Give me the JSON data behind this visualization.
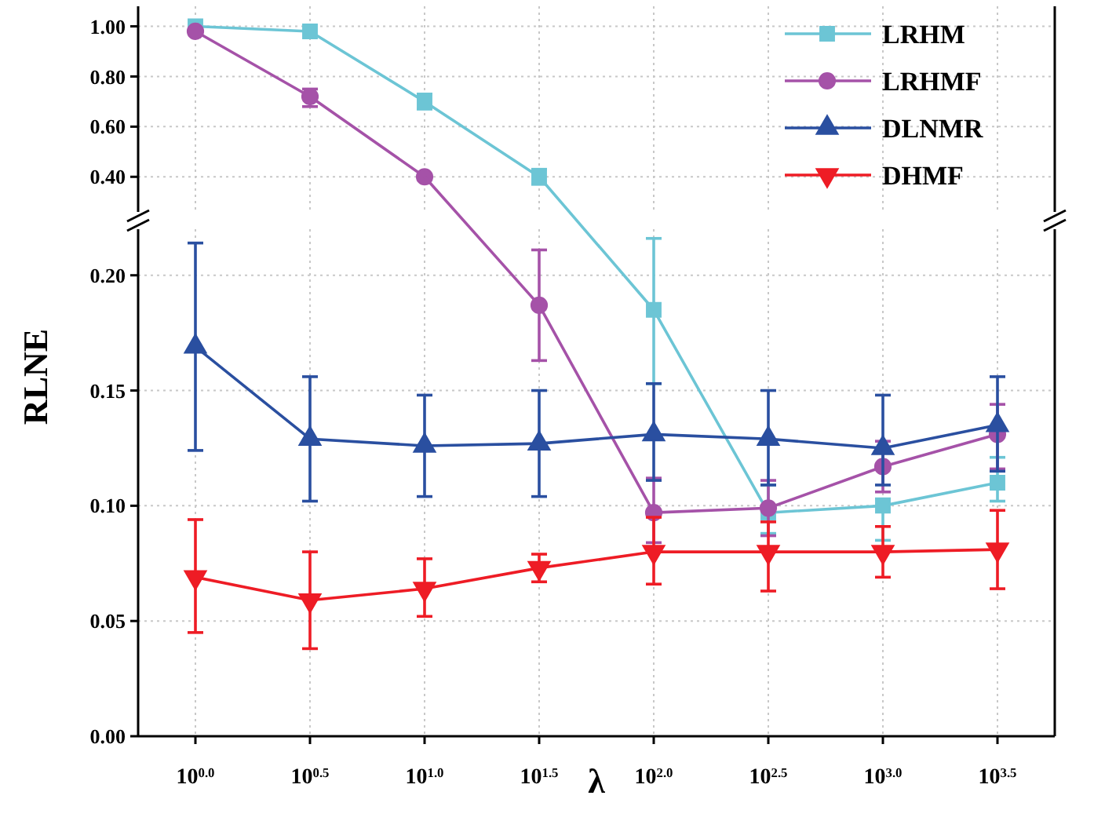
{
  "chart_data": [
    {
      "type": "line",
      "ylim": [
        0.26,
        1.08
      ],
      "yticks": [
        {
          "value": 0.4,
          "label": "0.40"
        },
        {
          "value": 0.6,
          "label": "0.60"
        },
        {
          "value": 0.8,
          "label": "0.80"
        },
        {
          "value": 1.0,
          "label": "1.00"
        }
      ],
      "tick_labels": "y",
      "grid": true,
      "legend": "right",
      "line_style": "solid",
      "series": [
        {
          "name": "LRHM",
          "color": "#6cc5d5",
          "marker": "square",
          "values": [
            1.0,
            0.98,
            0.7,
            0.4,
            null,
            null,
            null,
            null
          ],
          "errors": [
            null,
            null,
            [
              0.67,
              0.73
            ],
            [
              0.37,
              0.43
            ],
            null,
            null,
            null,
            null
          ]
        },
        {
          "name": "LRHMF",
          "color": "#a552a8",
          "marker": "circle",
          "values": [
            0.98,
            0.72,
            0.4,
            null,
            null,
            null,
            null,
            null
          ],
          "errors": [
            null,
            [
              0.68,
              0.75
            ],
            null,
            null,
            null,
            null,
            null,
            null
          ]
        },
        {
          "name": "DLNMR",
          "color": "#2a4fa0",
          "marker": "triangle",
          "values": [
            null,
            null,
            null,
            null,
            null,
            null,
            null,
            null
          ]
        },
        {
          "name": "DHMF",
          "color": "#ee1c25",
          "marker": "triangle-down",
          "values": [
            null,
            null,
            null,
            null,
            null,
            null,
            null,
            null
          ]
        }
      ]
    },
    {
      "type": "line",
      "xlabel": "λ",
      "ylabel": "RLNE",
      "categories": [
        "10$^{0.0}$",
        "10$^{0.5}$",
        "10$^{1.0}$",
        "10$^{1.5}$",
        "10$^{2.0}$",
        "10$^{2.5}$",
        "10$^{3.0}$",
        "10$^{3.5}$"
      ],
      "ylim": [
        0,
        0.22
      ],
      "yticks": [
        {
          "value": 0,
          "label": "0.00"
        },
        {
          "value": 0.05,
          "label": "0.05"
        },
        {
          "value": 0.1,
          "label": "0.10"
        },
        {
          "value": 0.15,
          "label": "0.15"
        },
        {
          "value": 0.2,
          "label": "0.20"
        }
      ],
      "grid": true,
      "line_style": "solid",
      "series": [
        {
          "color": "#6cc5d5",
          "marker": "square",
          "values": [
            null,
            null,
            null,
            null,
            0.185,
            0.097,
            0.1,
            0.11
          ],
          "errors": [
            null,
            null,
            null,
            null,
            [
              0.153,
              0.216
            ],
            [
              0.088,
              0.109
            ],
            [
              0.085,
              0.103
            ],
            [
              0.102,
              0.121
            ]
          ]
        },
        {
          "color": "#a552a8",
          "marker": "circle",
          "values": [
            null,
            null,
            null,
            0.187,
            0.097,
            0.099,
            0.117,
            0.131
          ],
          "errors": [
            null,
            null,
            null,
            [
              0.163,
              0.211
            ],
            [
              0.084,
              0.112
            ],
            [
              0.087,
              0.111
            ],
            [
              0.106,
              0.128
            ],
            [
              0.116,
              0.144
            ]
          ]
        },
        {
          "color": "#2a4fa0",
          "marker": "triangle",
          "values": [
            0.169,
            0.129,
            0.126,
            0.127,
            0.131,
            0.129,
            0.125,
            0.135
          ],
          "errors": [
            [
              0.124,
              0.214
            ],
            [
              0.102,
              0.156
            ],
            [
              0.104,
              0.148
            ],
            [
              0.104,
              0.15
            ],
            [
              0.111,
              0.153
            ],
            [
              0.109,
              0.15
            ],
            [
              0.109,
              0.148
            ],
            [
              0.115,
              0.156
            ]
          ]
        },
        {
          "color": "#ee1c25",
          "marker": "triangle-down",
          "values": [
            0.069,
            0.059,
            0.064,
            0.073,
            0.08,
            0.08,
            0.08,
            0.081
          ],
          "errors": [
            [
              0.045,
              0.094
            ],
            [
              0.038,
              0.08
            ],
            [
              0.052,
              0.077
            ],
            [
              0.067,
              0.079
            ],
            [
              0.066,
              0.095
            ],
            [
              0.063,
              0.093
            ],
            [
              0.069,
              0.091
            ],
            [
              0.064,
              0.098
            ]
          ]
        }
      ]
    }
  ]
}
